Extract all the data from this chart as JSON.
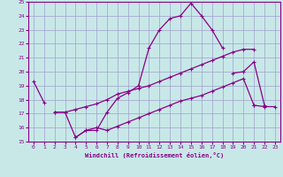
{
  "background_color": "#c8e8e8",
  "grid_color": "#a0a0cc",
  "line_color": "#880088",
  "xlabel": "Windchill (Refroidissement éolien,°C)",
  "xlim": [
    -0.5,
    23.5
  ],
  "ylim": [
    15,
    25
  ],
  "yticks": [
    15,
    16,
    17,
    18,
    19,
    20,
    21,
    22,
    23,
    24,
    25
  ],
  "xticks": [
    0,
    1,
    2,
    3,
    4,
    5,
    6,
    7,
    8,
    9,
    10,
    11,
    12,
    13,
    14,
    15,
    16,
    17,
    18,
    19,
    20,
    21,
    22,
    23
  ],
  "series": [
    {
      "x": [
        0,
        1
      ],
      "y": [
        19.3,
        17.8
      ]
    },
    {
      "x": [
        2,
        3,
        4,
        5,
        6,
        7,
        8,
        9,
        10,
        11,
        12,
        13,
        14,
        15,
        16,
        17,
        18
      ],
      "y": [
        17.1,
        17.1,
        15.3,
        15.8,
        15.8,
        17.1,
        18.1,
        18.5,
        19.0,
        21.7,
        23.0,
        23.8,
        24.0,
        24.9,
        24.0,
        23.0,
        21.7
      ]
    },
    {
      "x": [
        2,
        3,
        4,
        5,
        6,
        7,
        8,
        9,
        10,
        11,
        12,
        13,
        14,
        15,
        16,
        17,
        18,
        19,
        20,
        21
      ],
      "y": [
        17.1,
        17.1,
        17.3,
        17.5,
        17.7,
        18.0,
        18.4,
        18.6,
        18.8,
        19.0,
        19.3,
        19.6,
        19.9,
        20.2,
        20.5,
        20.8,
        21.1,
        21.4,
        21.6,
        21.6
      ]
    },
    {
      "x": [
        4,
        5,
        6,
        7,
        8,
        9,
        10,
        11,
        12,
        13,
        14,
        15,
        16,
        17,
        18,
        19,
        20,
        21
      ],
      "y": [
        15.3,
        15.8,
        16.0,
        15.8,
        16.1,
        16.4,
        16.7,
        17.0,
        17.3,
        17.6,
        17.9,
        18.1,
        18.3,
        18.6,
        18.9,
        19.2,
        19.5,
        17.6
      ]
    },
    {
      "x": [
        19,
        20,
        21,
        22
      ],
      "y": [
        19.9,
        20.0,
        20.7,
        17.6
      ]
    },
    {
      "x": [
        21,
        22,
        23
      ],
      "y": [
        17.6,
        17.5,
        17.5
      ]
    }
  ]
}
